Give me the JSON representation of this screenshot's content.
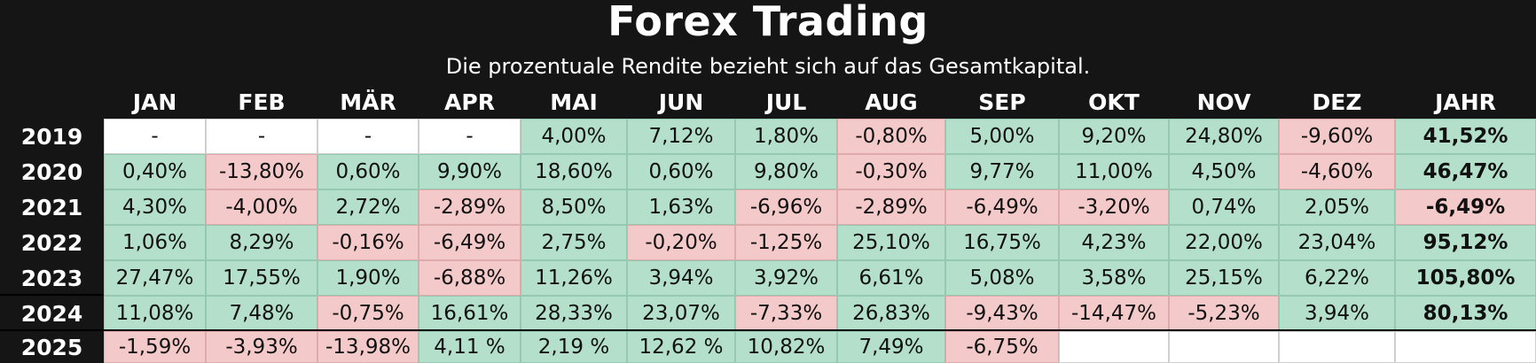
{
  "title": "Forex Trading",
  "subtitle": "Die prozentuale Rendite bezieht sich auf das Gesamtkapital.",
  "colors": {
    "background": "#151515",
    "positive": "#b4e0cb",
    "negative": "#f4c9c9",
    "empty": "#ffffff"
  },
  "chart_data": {
    "type": "table",
    "columns": [
      "JAN",
      "FEB",
      "MÄR",
      "APR",
      "MAI",
      "JUN",
      "JUL",
      "AUG",
      "SEP",
      "OKT",
      "NOV",
      "DEZ",
      "JAHR"
    ],
    "rows": [
      {
        "year": "2019",
        "values": [
          "-",
          "-",
          "-",
          "-",
          "4,00%",
          "7,12%",
          "1,80%",
          "-0,80%",
          "5,00%",
          "9,20%",
          "24,80%",
          "-9,60%",
          "41,52%"
        ],
        "status": [
          "empty",
          "empty",
          "empty",
          "empty",
          "pos",
          "pos",
          "pos",
          "neg",
          "pos",
          "pos",
          "pos",
          "neg",
          "pos"
        ]
      },
      {
        "year": "2020",
        "values": [
          "0,40%",
          "-13,80%",
          "0,60%",
          "9,90%",
          "18,60%",
          "0,60%",
          "9,80%",
          "-0,30%",
          "9,77%",
          "11,00%",
          "4,50%",
          "-4,60%",
          "46,47%"
        ],
        "status": [
          "pos",
          "neg",
          "pos",
          "pos",
          "pos",
          "pos",
          "pos",
          "neg",
          "pos",
          "pos",
          "pos",
          "neg",
          "pos"
        ]
      },
      {
        "year": "2021",
        "values": [
          "4,30%",
          "-4,00%",
          "2,72%",
          "-2,89%",
          "8,50%",
          "1,63%",
          "-6,96%",
          "-2,89%",
          "-6,49%",
          "-3,20%",
          "0,74%",
          "2,05%",
          "-6,49%"
        ],
        "status": [
          "pos",
          "neg",
          "pos",
          "neg",
          "pos",
          "pos",
          "neg",
          "neg",
          "neg",
          "neg",
          "pos",
          "pos",
          "neg"
        ]
      },
      {
        "year": "2022",
        "values": [
          "1,06%",
          "8,29%",
          "-0,16%",
          "-6,49%",
          "2,75%",
          "-0,20%",
          "-1,25%",
          "25,10%",
          "16,75%",
          "4,23%",
          "22,00%",
          "23,04%",
          "95,12%"
        ],
        "status": [
          "pos",
          "pos",
          "neg",
          "neg",
          "pos",
          "neg",
          "neg",
          "pos",
          "pos",
          "pos",
          "pos",
          "pos",
          "pos"
        ]
      },
      {
        "year": "2023",
        "values": [
          "27,47%",
          "17,55%",
          "1,90%",
          "-6,88%",
          "11,26%",
          "3,94%",
          "3,92%",
          "6,61%",
          "5,08%",
          "3,58%",
          "25,15%",
          "6,22%",
          "105,80%"
        ],
        "status": [
          "pos",
          "pos",
          "pos",
          "neg",
          "pos",
          "pos",
          "pos",
          "pos",
          "pos",
          "pos",
          "pos",
          "pos",
          "pos"
        ]
      },
      {
        "year": "2024",
        "values": [
          "11,08%",
          "7,48%",
          "-0,75%",
          "16,61%",
          "28,33%",
          "23,07%",
          "-7,33%",
          "26,83%",
          "-9,43%",
          "-14,47%",
          "-5,23%",
          "3,94%",
          "80,13%"
        ],
        "status": [
          "pos",
          "pos",
          "neg",
          "pos",
          "pos",
          "pos",
          "neg",
          "pos",
          "neg",
          "neg",
          "neg",
          "pos",
          "pos"
        ]
      },
      {
        "year": "2025",
        "values": [
          "-1,59%",
          "-3,93%",
          "-13,98%",
          "4,11 %",
          "2,19 %",
          "12,62 %",
          "10,82%",
          "7,49%",
          "-6,75%",
          "",
          "",
          "",
          ""
        ],
        "status": [
          "neg",
          "neg",
          "neg",
          "pos",
          "pos",
          "pos",
          "pos",
          "pos",
          "neg",
          "empty",
          "empty",
          "empty",
          "empty"
        ]
      }
    ]
  }
}
